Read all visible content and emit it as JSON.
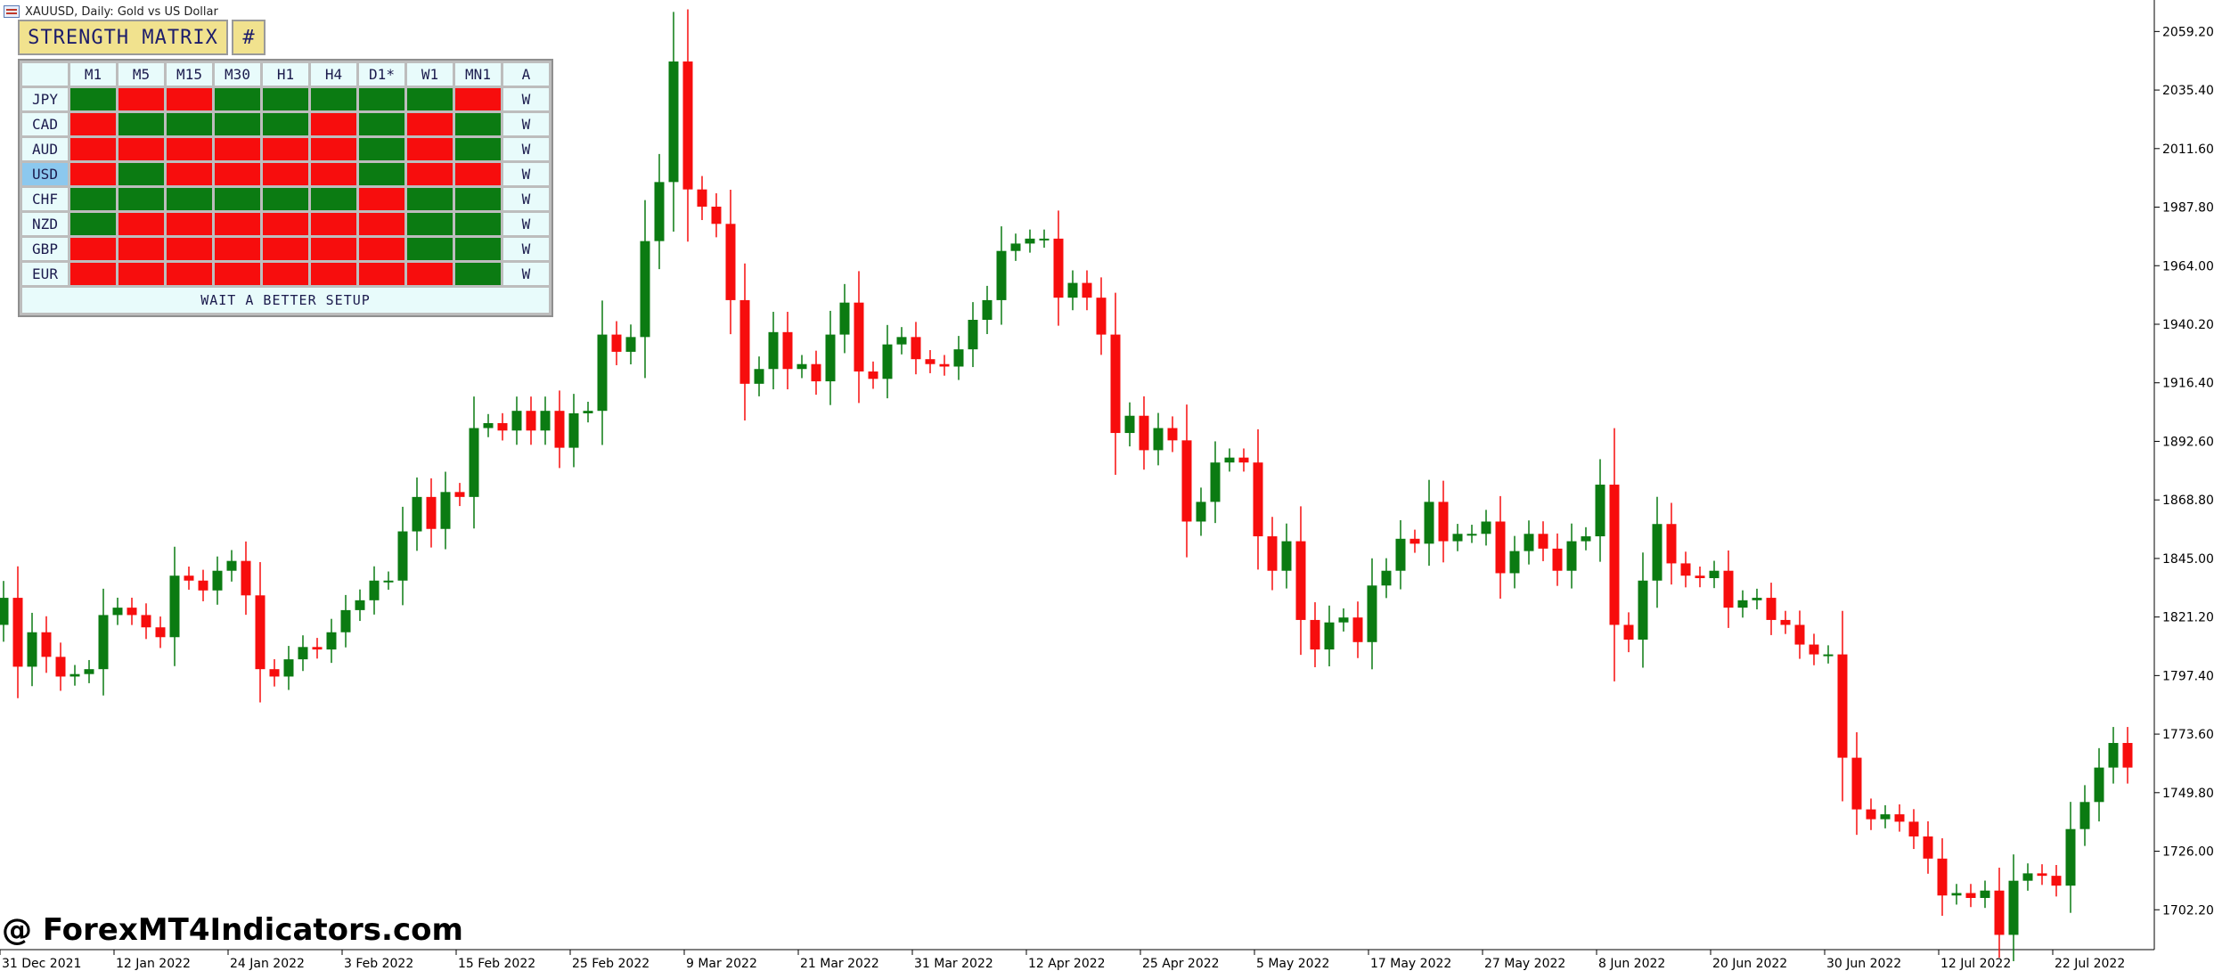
{
  "window": {
    "title": "XAUUSD, Daily:  Gold vs US Dollar"
  },
  "matrix": {
    "title": "STRENGTH MATRIX",
    "toggle_label": "#",
    "timeframes": [
      "M1",
      "M5",
      "M15",
      "M30",
      "H1",
      "H4",
      "D1*",
      "W1",
      "MN1"
    ],
    "action_header": "A",
    "rows": [
      {
        "pair": "JPY",
        "highlight": false,
        "cells": [
          "G",
          "R",
          "R",
          "G",
          "G",
          "G",
          "G",
          "G",
          "R"
        ],
        "action": "W"
      },
      {
        "pair": "CAD",
        "highlight": false,
        "cells": [
          "R",
          "G",
          "G",
          "G",
          "G",
          "R",
          "G",
          "R",
          "G"
        ],
        "action": "W"
      },
      {
        "pair": "AUD",
        "highlight": false,
        "cells": [
          "R",
          "R",
          "R",
          "R",
          "R",
          "R",
          "G",
          "R",
          "G"
        ],
        "action": "W"
      },
      {
        "pair": "USD",
        "highlight": true,
        "cells": [
          "R",
          "G",
          "R",
          "R",
          "R",
          "R",
          "G",
          "R",
          "R"
        ],
        "action": "W"
      },
      {
        "pair": "CHF",
        "highlight": false,
        "cells": [
          "G",
          "G",
          "G",
          "G",
          "G",
          "G",
          "R",
          "G",
          "G"
        ],
        "action": "W"
      },
      {
        "pair": "NZD",
        "highlight": false,
        "cells": [
          "G",
          "R",
          "R",
          "R",
          "R",
          "R",
          "R",
          "G",
          "G"
        ],
        "action": "W"
      },
      {
        "pair": "GBP",
        "highlight": false,
        "cells": [
          "R",
          "R",
          "R",
          "R",
          "R",
          "R",
          "R",
          "G",
          "G"
        ],
        "action": "W"
      },
      {
        "pair": "EUR",
        "highlight": false,
        "cells": [
          "R",
          "R",
          "R",
          "R",
          "R",
          "R",
          "R",
          "R",
          "G"
        ],
        "action": "W"
      }
    ],
    "status": "WAIT A BETTER SETUP",
    "colors": {
      "G": "#0b7b12",
      "R": "#f70d0d"
    }
  },
  "watermark": "@ ForexMT4Indicators.com",
  "chart_data": {
    "type": "candlestick",
    "symbol": "XAUUSD",
    "timeframe": "Daily",
    "bull_color": "#0b7b12",
    "bear_color": "#f70d0d",
    "ylim": [
      1686,
      2072
    ],
    "y_ticks": [
      "2059.20",
      "2035.40",
      "2011.60",
      "1987.80",
      "1964.00",
      "1940.20",
      "1916.40",
      "1892.60",
      "1868.80",
      "1845.00",
      "1821.20",
      "1797.40",
      "1773.60",
      "1749.80",
      "1726.00",
      "1702.20"
    ],
    "x_ticks": [
      "31 Dec 2021",
      "12 Jan 2022",
      "24 Jan 2022",
      "3 Feb 2022",
      "15 Feb 2022",
      "25 Feb 2022",
      "9 Mar 2022",
      "21 Mar 2022",
      "31 Mar 2022",
      "12 Apr 2022",
      "25 Apr 2022",
      "5 May 2022",
      "17 May 2022",
      "27 May 2022",
      "8 Jun 2022",
      "20 Jun 2022",
      "30 Jun 2022",
      "12 Jul 2022",
      "22 Jul 2022"
    ],
    "x_tick_index": [
      0,
      8,
      16,
      24,
      32,
      40,
      48,
      56,
      64,
      72,
      80,
      88,
      96,
      104,
      112,
      120,
      128,
      136,
      144
    ],
    "close": [
      1829,
      1801,
      1815,
      1805,
      1797,
      1798,
      1800,
      1822,
      1825,
      1822,
      1817,
      1813,
      1838,
      1836,
      1832,
      1840,
      1844,
      1830,
      1800,
      1797,
      1804,
      1809,
      1808,
      1815,
      1824,
      1828,
      1836,
      1836,
      1856,
      1870,
      1857,
      1872,
      1870,
      1898,
      1900,
      1897,
      1905,
      1897,
      1905,
      1890,
      1904,
      1905,
      1936,
      1929,
      1935,
      1974,
      1998,
      2047,
      1995,
      1988,
      1981,
      1950,
      1916,
      1922,
      1937,
      1922,
      1924,
      1917,
      1936,
      1949,
      1921,
      1918,
      1932,
      1935,
      1926,
      1924,
      1923,
      1930,
      1942,
      1950,
      1970,
      1973,
      1975,
      1975,
      1951,
      1957,
      1951,
      1936,
      1896,
      1903,
      1889,
      1898,
      1893,
      1860,
      1868,
      1884,
      1886,
      1884,
      1854,
      1840,
      1852,
      1820,
      1808,
      1819,
      1821,
      1811,
      1834,
      1840,
      1853,
      1851,
      1868,
      1852,
      1855,
      1855,
      1860,
      1839,
      1848,
      1855,
      1849,
      1840,
      1852,
      1854,
      1875,
      1818,
      1812,
      1836,
      1859,
      1843,
      1838,
      1837,
      1840,
      1825,
      1828,
      1829,
      1820,
      1818,
      1810,
      1806,
      1806,
      1764,
      1743,
      1739,
      1741,
      1738,
      1732,
      1723,
      1708,
      1709,
      1707,
      1710,
      1692,
      1714,
      1717,
      1716,
      1712,
      1735,
      1746,
      1760,
      1770,
      1760
    ],
    "days_per_tick": 8
  }
}
